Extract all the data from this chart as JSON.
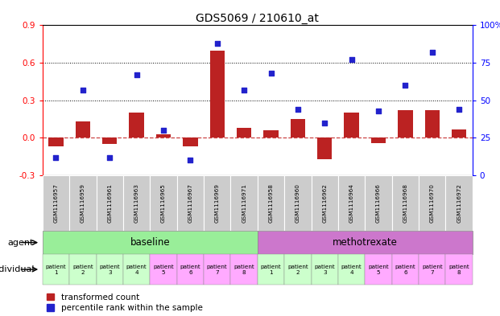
{
  "title": "GDS5069 / 210610_at",
  "samples": [
    "GSM1116957",
    "GSM1116959",
    "GSM1116961",
    "GSM1116963",
    "GSM1116965",
    "GSM1116967",
    "GSM1116969",
    "GSM1116971",
    "GSM1116958",
    "GSM1116960",
    "GSM1116962",
    "GSM1116964",
    "GSM1116966",
    "GSM1116968",
    "GSM1116970",
    "GSM1116972"
  ],
  "bar_values": [
    -0.07,
    0.13,
    -0.05,
    0.2,
    0.03,
    -0.07,
    0.7,
    0.08,
    0.06,
    0.15,
    -0.17,
    0.2,
    -0.04,
    0.22,
    0.22,
    0.07
  ],
  "dot_values_pct": [
    12,
    57,
    12,
    67,
    30,
    10,
    88,
    57,
    68,
    44,
    35,
    77,
    43,
    60,
    82,
    44
  ],
  "ylim_left": [
    -0.3,
    0.9
  ],
  "ylim_right": [
    0,
    100
  ],
  "yticks_left": [
    -0.3,
    0.0,
    0.3,
    0.6,
    0.9
  ],
  "yticks_right": [
    0,
    25,
    50,
    75,
    100
  ],
  "hlines": [
    0.3,
    0.6
  ],
  "bar_color": "#BB2222",
  "dot_color": "#2222CC",
  "dashed_color": "#CC4444",
  "agent_groups": [
    {
      "label": "baseline",
      "start": 0,
      "end": 8,
      "color": "#99EE99"
    },
    {
      "label": "methotrexate",
      "start": 8,
      "end": 16,
      "color": "#CC77CC"
    }
  ],
  "patient_labels": [
    "patient\n1",
    "patient\n2",
    "patient\n3",
    "patient\n4",
    "patient\n5",
    "patient\n6",
    "patient\n7",
    "patient\n8",
    "patient\n1",
    "patient\n2",
    "patient\n3",
    "patient\n4",
    "patient\n5",
    "patient\n6",
    "patient\n7",
    "patient\n8"
  ],
  "legend_bar": "transformed count",
  "legend_dot": "percentile rank within the sample",
  "agent_label": "agent",
  "individual_label": "individual"
}
